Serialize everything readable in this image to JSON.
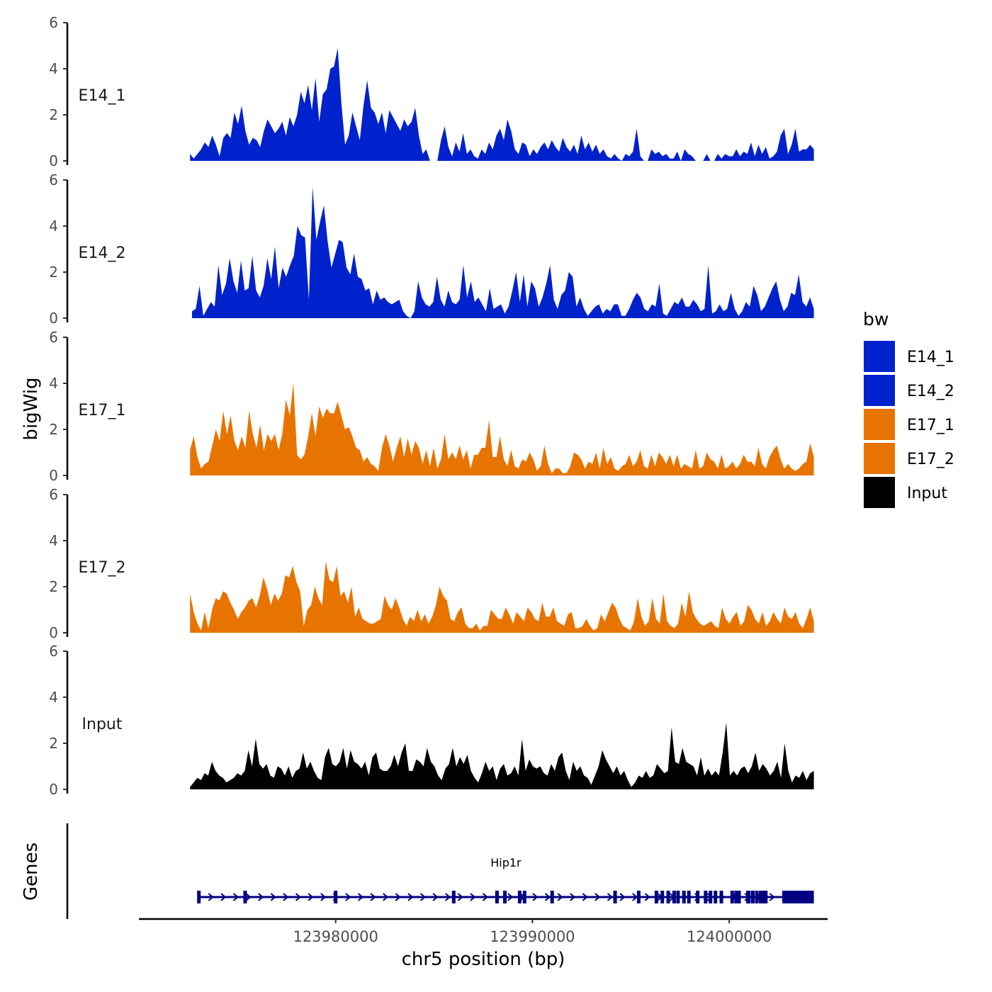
{
  "chart_data": {
    "type": "area",
    "title": "",
    "ylabel": "bigWig",
    "xlabel": "chr5 position (bp)",
    "genes_label": "Genes",
    "xlim": [
      123970000,
      124005000
    ],
    "ylim": [
      0,
      6
    ],
    "yticks": [
      "0",
      "2",
      "4",
      "6"
    ],
    "xticks": [
      {
        "value": 123980000,
        "label": "123980000"
      },
      {
        "value": 123990000,
        "label": "123990000"
      },
      {
        "value": 124000000,
        "label": "124000000"
      }
    ],
    "legend": {
      "title": "bw",
      "position": "right",
      "entries": [
        {
          "label": "E14_1",
          "color": "#0022CC"
        },
        {
          "label": "E14_2",
          "color": "#0022CC"
        },
        {
          "label": "E17_1",
          "color": "#E87400"
        },
        {
          "label": "E17_2",
          "color": "#E87400"
        },
        {
          "label": "Input",
          "color": "#000000"
        }
      ]
    },
    "series": [
      {
        "name": "E14_1",
        "color": "#0022CC",
        "x_start": 123972600,
        "x_end": 124004300,
        "values": [
          0.3,
          0.1,
          0.3,
          0.5,
          0.8,
          0.6,
          1.1,
          0.7,
          0.2,
          1.0,
          1.2,
          1.0,
          2.1,
          1.6,
          2.4,
          1.3,
          0.7,
          1.0,
          0.9,
          0.6,
          1.3,
          1.8,
          1.5,
          1.2,
          1.4,
          1.7,
          1.1,
          1.9,
          1.5,
          2.0,
          3.0,
          2.5,
          3.3,
          2.2,
          3.6,
          1.7,
          2.9,
          3.1,
          4.0,
          4.1,
          4.9,
          2.5,
          0.7,
          1.1,
          2.1,
          1.5,
          0.9,
          2.4,
          3.5,
          2.3,
          2.1,
          1.6,
          2.1,
          1.2,
          2.2,
          1.9,
          1.6,
          1.3,
          1.8,
          1.5,
          1.7,
          2.3,
          1.1,
          0.3,
          0.5,
          0,
          0,
          0,
          0.9,
          1.5,
          0.6,
          0.2,
          0.8,
          0.4,
          1.2,
          0.3,
          0.5,
          0.2,
          0.1,
          0.5,
          0.3,
          0.8,
          0.5,
          1.1,
          1.4,
          0.9,
          1.8,
          1.3,
          0.5,
          0.3,
          0.8,
          0.7,
          0.2,
          0.5,
          0.3,
          0.6,
          0.8,
          0.5,
          0.9,
          0.6,
          0.4,
          1.0,
          0.6,
          0.4,
          0.7,
          0.3,
          1.1,
          0.5,
          0.8,
          0.4,
          0.7,
          0.3,
          0.5,
          0.2,
          0.1,
          0.3,
          0.1,
          0,
          0.3,
          0.2,
          0.4,
          1.4,
          0.2,
          0,
          0,
          0.5,
          0.3,
          0.4,
          0.2,
          0.3,
          0.1,
          0.1,
          0.4,
          0,
          0.5,
          0.3,
          0.2,
          0,
          0,
          0,
          0.3,
          0,
          0,
          0.3,
          0.1,
          0.3,
          0.2,
          0.2,
          0.5,
          0.2,
          0.4,
          0.3,
          0.8,
          0.2,
          0.7,
          0.3,
          0.6,
          0.1,
          0.2,
          0.4,
          1.1,
          1.4,
          0.3,
          0.7,
          1.4,
          0.4,
          0.5,
          0.5,
          0.7,
          0.5
        ]
      },
      {
        "name": "E14_2",
        "color": "#0022CC",
        "x_start": 123972700,
        "x_end": 124004300,
        "values": [
          0.3,
          0.4,
          1.4,
          0.1,
          0.4,
          0.7,
          0.5,
          2.3,
          1.0,
          1.5,
          2.6,
          1.6,
          1.1,
          2.5,
          1.2,
          1.3,
          2.7,
          1.2,
          0.9,
          1.4,
          2.6,
          1.7,
          3.1,
          1.3,
          2.2,
          1.8,
          2.3,
          2.7,
          4.0,
          3.6,
          3.5,
          0.8,
          5.7,
          3.4,
          4.2,
          4.9,
          3.3,
          2.2,
          2.8,
          3.4,
          3.3,
          2.2,
          1.9,
          2.8,
          1.8,
          1.7,
          1.2,
          1.3,
          0.6,
          1.2,
          0.8,
          0.9,
          0.7,
          0.6,
          0.7,
          0.8,
          0.3,
          0.1,
          0,
          0.3,
          1.6,
          0.9,
          0.6,
          0.5,
          0.7,
          1.8,
          0.8,
          0.5,
          1.2,
          0.7,
          0.6,
          0.8,
          2.3,
          0.9,
          1.6,
          0.7,
          0.9,
          0.6,
          0.3,
          1.3,
          0.4,
          0.5,
          0.6,
          0.2,
          0.5,
          1.2,
          2.0,
          0.7,
          1.9,
          0.5,
          1.6,
          1.3,
          0.5,
          0.9,
          1.5,
          2.3,
          0.8,
          0.4,
          1.0,
          1.2,
          2.0,
          1.8,
          0.5,
          0.9,
          0.4,
          0.1,
          0.3,
          0.5,
          0.6,
          0.2,
          0.4,
          0.3,
          0.6,
          0.6,
          0.1,
          0.1,
          0.4,
          0.8,
          1.1,
          0.9,
          0.4,
          0.3,
          0.6,
          0.5,
          1.5,
          0.2,
          0.1,
          0.4,
          0.7,
          0.6,
          0.9,
          0.5,
          0.5,
          0.8,
          0.6,
          0.3,
          0.4,
          2.3,
          0.2,
          0.3,
          0.6,
          0.3,
          0.4,
          1.1,
          0.4,
          0.1,
          0.3,
          0.7,
          0.5,
          1.4,
          1.0,
          0.3,
          0.5,
          0.9,
          1.3,
          1.6,
          0.8,
          0.3,
          0.5,
          1.1,
          1.0,
          1.9,
          0.7,
          0.5,
          0.9,
          0.4
        ]
      },
      {
        "name": "E17_1",
        "color": "#E87400",
        "x_start": 123972600,
        "x_end": 124004300,
        "values": [
          1.1,
          1.7,
          0.8,
          0.3,
          0.5,
          0.6,
          1.3,
          2.0,
          1.5,
          2.8,
          1.8,
          2.6,
          1.5,
          1.1,
          1.7,
          1.2,
          2.8,
          1.8,
          1.2,
          2.2,
          1.1,
          1.8,
          1.5,
          1.8,
          1.1,
          1.8,
          3.3,
          2.6,
          4.0,
          0.9,
          0.7,
          0.9,
          1.7,
          2.7,
          1.7,
          3.0,
          2.5,
          2.9,
          2.7,
          2.7,
          3.2,
          2.6,
          2.0,
          2.1,
          1.7,
          1.2,
          1.1,
          0.6,
          0.8,
          0.5,
          0.4,
          0.2,
          1.2,
          1.8,
          1.3,
          0.6,
          1.2,
          1.7,
          0.8,
          1.6,
          0.9,
          1.5,
          1.2,
          0.5,
          1.1,
          0.4,
          1.2,
          0.3,
          0.7,
          1.8,
          0.7,
          1.0,
          0.7,
          1.3,
          0.7,
          1.1,
          0.3,
          0.9,
          0.9,
          1.2,
          1.2,
          2.4,
          0.8,
          0.8,
          1.7,
          0.7,
          0.4,
          1.1,
          0.4,
          0.3,
          0.7,
          0.6,
          1.0,
          0.7,
          0.2,
          0.4,
          1.3,
          0.5,
          0.1,
          0.3,
          0.3,
          0.1,
          0.1,
          0.4,
          1.0,
          0.9,
          0.7,
          0.3,
          0.6,
          0.5,
          1.0,
          0.3,
          1.2,
          0.5,
          0.8,
          0.3,
          0.2,
          0.4,
          0.5,
          0.9,
          0.4,
          0.6,
          1.1,
          0.4,
          0.3,
          0.9,
          0.4,
          1.0,
          0.8,
          0.5,
          0.9,
          0.4,
          0.9,
          0.3,
          0.5,
          0.4,
          0.3,
          1.1,
          0.3,
          0.4,
          1.0,
          0.7,
          0.6,
          0.3,
          0.9,
          0.3,
          0.4,
          0.6,
          0.3,
          0.5,
          0.9,
          0.6,
          0.6,
          0.4,
          1.2,
          0.5,
          0.3,
          0.8,
          1.1,
          1.3,
          0.7,
          0.3,
          0.5,
          0.3,
          0.2,
          0.3,
          0.5,
          0.6,
          1.4,
          0.8
        ]
      },
      {
        "name": "E17_2",
        "color": "#E87400",
        "x_start": 123972600,
        "x_end": 124004300,
        "values": [
          1.7,
          0.9,
          0.4,
          0.1,
          0.9,
          0.2,
          1.0,
          1.5,
          1.4,
          1.8,
          1.7,
          1.3,
          1.0,
          0.6,
          0.9,
          1.1,
          1.4,
          1.5,
          1.1,
          1.6,
          2.4,
          1.9,
          1.2,
          1.7,
          1.4,
          1.7,
          2.5,
          2.4,
          2.9,
          2.2,
          1.8,
          0.3,
          1.0,
          1.2,
          2.0,
          1.5,
          1.2,
          3.1,
          2.3,
          2.2,
          2.9,
          1.6,
          1.8,
          1.3,
          2.0,
          0.7,
          1.1,
          0.6,
          0.5,
          0.4,
          0.4,
          0.5,
          0.6,
          1.6,
          1.2,
          1.0,
          1.5,
          1.1,
          0.6,
          0.3,
          0.7,
          0.5,
          1.0,
          0.5,
          0.8,
          0.4,
          0.7,
          1.2,
          2.0,
          1.6,
          1.4,
          0.6,
          0.5,
          0.9,
          1.1,
          0.4,
          0.2,
          0.2,
          0.4,
          0.1,
          0.3,
          0.3,
          1.0,
          0.8,
          0.6,
          0.6,
          1.1,
          0.8,
          0.4,
          0.9,
          0.7,
          0.5,
          1.1,
          0.9,
          0.6,
          0.5,
          1.3,
          0.7,
          0.7,
          1.1,
          0.5,
          0.4,
          0.3,
          0.8,
          0.9,
          0.2,
          0.2,
          0.3,
          0.6,
          0.3,
          0.1,
          0.2,
          0.8,
          0.5,
          0.9,
          1.3,
          1.1,
          0.6,
          0.3,
          0.2,
          0.1,
          0.5,
          1.5,
          0.7,
          0.3,
          0.5,
          1.5,
          0.6,
          0.4,
          1.7,
          0.5,
          0.3,
          0.2,
          0.4,
          1.3,
          0.7,
          1.8,
          0.9,
          0.6,
          0.4,
          0.3,
          0.4,
          0.5,
          0.3,
          0.2,
          1.1,
          0.6,
          0.4,
          0.7,
          0.9,
          0.3,
          0.5,
          1.2,
          1.0,
          0.6,
          0.4,
          0.9,
          0.3,
          0.5,
          0.9,
          0.6,
          0.4,
          1.1,
          0.7,
          0.6,
          0.9,
          0.4,
          0.2,
          0.6,
          1.1,
          0.5
        ]
      },
      {
        "name": "Input",
        "color": "#000000",
        "x_start": 123972600,
        "x_end": 124004300,
        "values": [
          0.1,
          0.3,
          0.5,
          0.4,
          0.7,
          0.6,
          1.2,
          0.8,
          0.6,
          0.5,
          0.3,
          0.4,
          0.5,
          0.7,
          0.6,
          0.8,
          1.7,
          1.0,
          2.2,
          1.1,
          0.9,
          1.1,
          0.6,
          0.5,
          1.0,
          0.9,
          0.6,
          1.0,
          0.5,
          0.8,
          0.9,
          1.6,
          0.9,
          1.2,
          0.8,
          0.5,
          0.4,
          1.4,
          1.8,
          1.1,
          1.0,
          1.2,
          1.8,
          0.9,
          1.7,
          1.2,
          1.1,
          0.9,
          1.2,
          0.6,
          1.4,
          1.6,
          0.9,
          0.8,
          0.8,
          1.0,
          1.5,
          1.0,
          1.6,
          2.0,
          0.8,
          0.8,
          1.3,
          1.2,
          1.0,
          1.8,
          1.2,
          1.0,
          0.6,
          0.4,
          0.9,
          1.1,
          1.8,
          1.0,
          1.4,
          1.1,
          1.5,
          0.8,
          0.5,
          0.3,
          0.7,
          1.2,
          0.8,
          1.0,
          0.4,
          0.9,
          1.1,
          0.6,
          0.7,
          1.0,
          0.6,
          2.2,
          0.8,
          1.3,
          1.0,
          0.9,
          1.0,
          0.7,
          0.6,
          1.1,
          0.8,
          1.4,
          1.6,
          0.8,
          0.4,
          1.2,
          0.8,
          1.0,
          0.6,
          0.5,
          0.2,
          0.6,
          1.0,
          1.7,
          1.3,
          1.0,
          0.7,
          1.0,
          0.6,
          0.8,
          0.4,
          0.1,
          0.3,
          0.6,
          0.5,
          0.8,
          0.5,
          0.6,
          1.1,
          0.9,
          0.7,
          0.8,
          2.7,
          1.2,
          1.1,
          1.8,
          1.2,
          1.1,
          1.0,
          0.6,
          1.4,
          0.6,
          0.9,
          0.6,
          0.8,
          0.6,
          1.6,
          2.9,
          0.6,
          0.8,
          0.6,
          0.9,
          1.0,
          0.7,
          1.0,
          1.6,
          0.8,
          1.1,
          0.9,
          0.6,
          0.8,
          1.2,
          0.5,
          2.0,
          0.8,
          0.3,
          0.6,
          0.5,
          0.8,
          0.4,
          0.7,
          0.8
        ]
      }
    ],
    "gene": {
      "name": "Hip1r",
      "strand": "+",
      "start": 123973000,
      "end": 124004300,
      "exons": [
        123973050,
        123975400,
        123980000,
        123986000,
        123988200,
        123988600,
        123989350,
        123989600,
        123991000,
        123994200,
        123995400,
        123996300,
        123996600,
        123996900,
        123997200,
        123997400,
        123997700,
        123997950,
        123998400,
        123998800,
        123999050,
        123999300,
        123999600,
        124000150,
        124000350,
        124000500,
        124000950,
        124001000,
        124001200,
        124001400,
        124001600
      ]
    }
  }
}
